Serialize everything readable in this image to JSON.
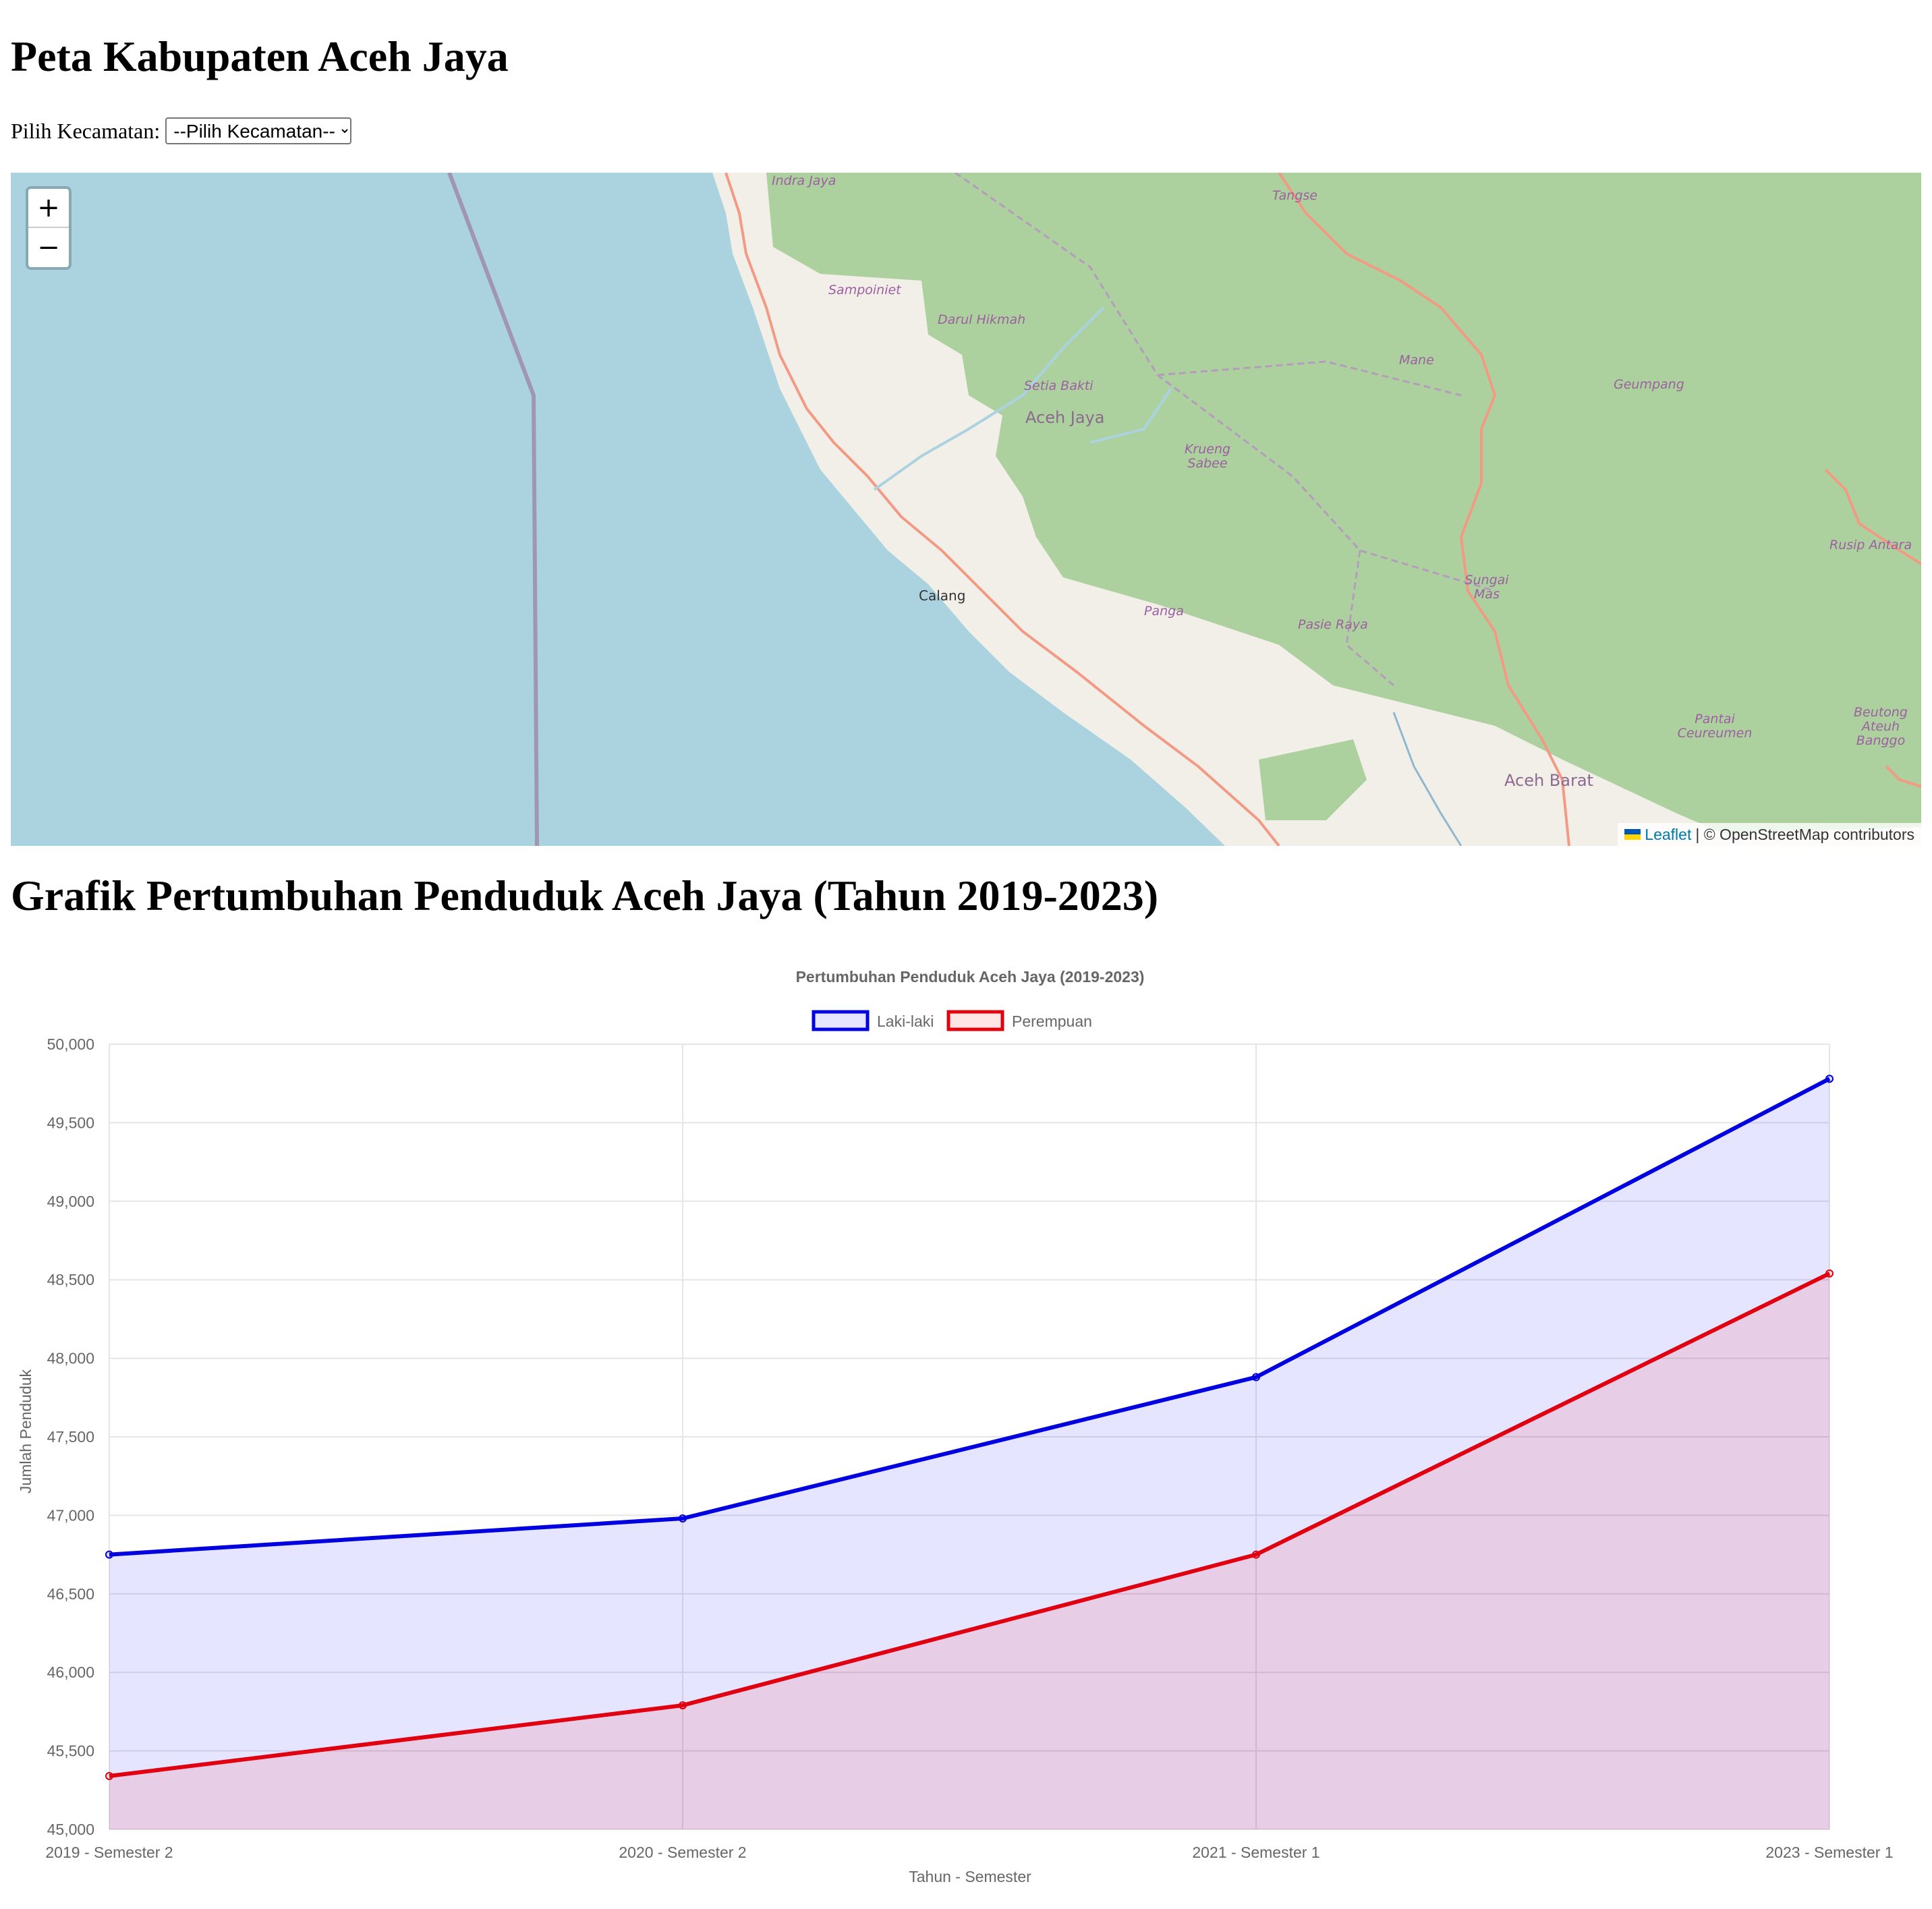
{
  "page": {
    "title": "Peta Kabupaten Aceh Jaya",
    "selector_label": "Pilih Kecamatan:",
    "selector_value": "--Pilih Kecamatan--",
    "chart_heading": "Grafik Pertumbuhan Penduduk Aceh Jaya (Tahun 2019-2023)"
  },
  "map": {
    "zoom_in": "+",
    "zoom_out": "−",
    "attribution_link": "Leaflet",
    "attribution_text": "| © OpenStreetMap contributors",
    "labels": {
      "indra_jaya": "Indra Jaya",
      "tangse": "Tangse",
      "sampoiniet": "Sampoiniet",
      "darul_hikmah": "Darul Hikmah",
      "mane": "Mane",
      "geumpang": "Geumpang",
      "setia_bakti": "Setia Bakti",
      "aceh_jaya": "Aceh Jaya",
      "krueng_sabee": "Krueng Sabee",
      "rusip_antara": "Rusip Antara",
      "sungai_mas": "Sungai Mas",
      "calang": "Calang",
      "panga": "Panga",
      "pasie_raya": "Pasie Raya",
      "pantai_ceureumen": "Pantai Ceureumen",
      "beutong": "Beutong Ateuh Banggo",
      "aceh_barat": "Aceh Barat"
    },
    "colors": {
      "sea": "#aad3df",
      "forest": "#add19e",
      "land": "#f2efe9",
      "road": "#f29a84",
      "river": "#aad3df"
    }
  },
  "chart_data": {
    "type": "area",
    "title": "Pertumbuhan Penduduk Aceh Jaya (2019-2023)",
    "xlabel": "Tahun - Semester",
    "ylabel": "Jumlah Penduduk",
    "categories": [
      "2019 - Semester 2",
      "2020 - Semester 2",
      "2021 - Semester 1",
      "2023 - Semester 1"
    ],
    "ylim": [
      45000,
      50000
    ],
    "yticks": [
      45000,
      45500,
      46000,
      46500,
      47000,
      47500,
      48000,
      48500,
      49000,
      49500,
      50000
    ],
    "ytick_labels": [
      "45,000",
      "45,500",
      "46,000",
      "46,500",
      "47,000",
      "47,500",
      "48,000",
      "48,500",
      "49,000",
      "49,500",
      "50,000"
    ],
    "series": [
      {
        "name": "Laki-laki",
        "values": [
          46750,
          46980,
          47880,
          49780
        ],
        "color": "#0000e0",
        "fill": "rgba(0,0,255,0.1)"
      },
      {
        "name": "Perempuan",
        "values": [
          45340,
          45790,
          46750,
          48540
        ],
        "color": "#e00010",
        "fill": "rgba(255,0,0,0.1)"
      }
    ]
  }
}
